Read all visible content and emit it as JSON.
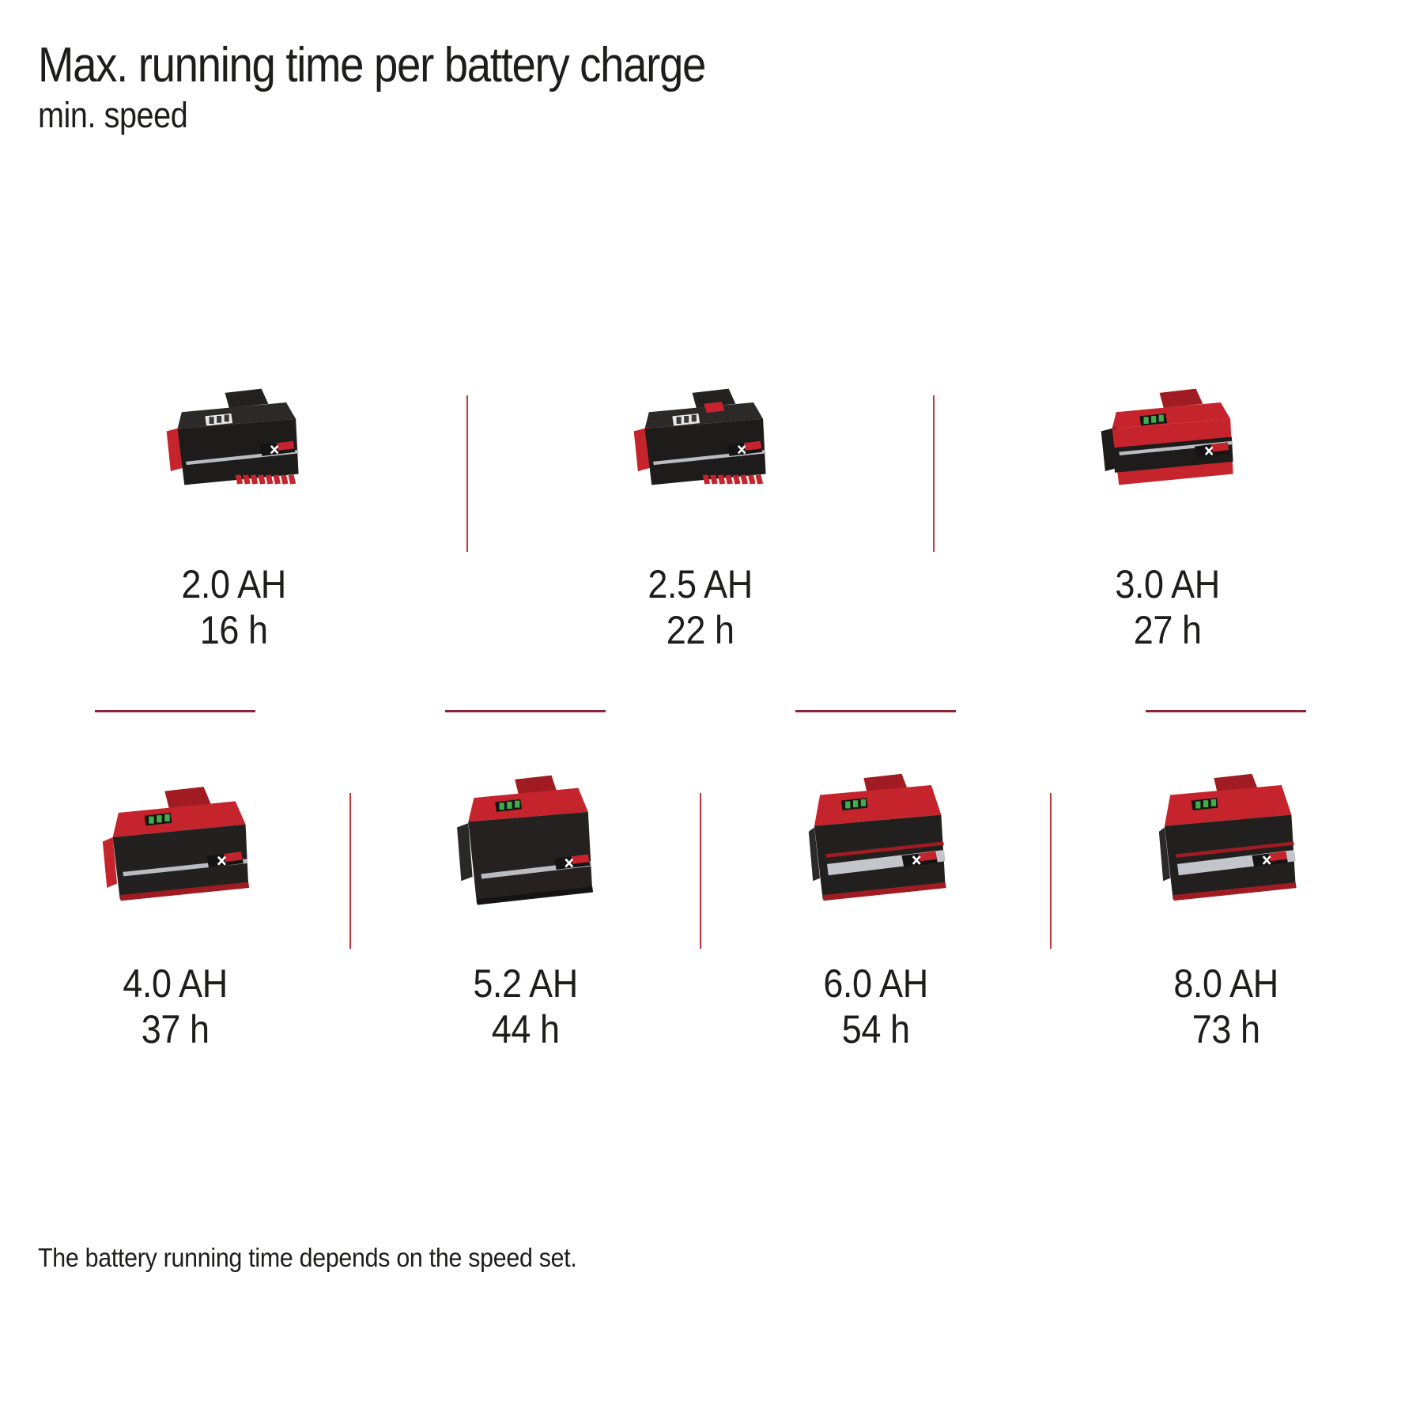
{
  "header": {
    "title": "Max. running time per battery charge",
    "subtitle": "min. speed"
  },
  "items": [
    {
      "capacity": "2.0 AH",
      "runtime": "16 h",
      "image": "battery-2-0ah-image",
      "variant": "compact-black"
    },
    {
      "capacity": "2.5 AH",
      "runtime": "22 h",
      "image": "battery-2-5ah-image",
      "variant": "compact-black-button"
    },
    {
      "capacity": "3.0 AH",
      "runtime": "27 h",
      "image": "battery-3-0ah-image",
      "variant": "compact-red"
    },
    {
      "capacity": "4.0 AH",
      "runtime": "37 h",
      "image": "battery-4-0ah-image",
      "variant": "mid-red"
    },
    {
      "capacity": "5.2 AH",
      "runtime": "44 h",
      "image": "battery-5-2ah-image",
      "variant": "plus-dark"
    },
    {
      "capacity": "6.0 AH",
      "runtime": "54 h",
      "image": "battery-6-0ah-image",
      "variant": "plus"
    },
    {
      "capacity": "8.0 AH",
      "runtime": "73 h",
      "image": "battery-8-0ah-image",
      "variant": "plus"
    }
  ],
  "footnote": "The battery running time depends on the speed set.",
  "colors": {
    "brand_red": "#c5242c",
    "dark_red": "#a11b22",
    "body_dark": "#1d1c1b",
    "divider_vertical": "#c4343c",
    "divider_horizontal": "#8d2335",
    "text": "#1d1d1b",
    "led_green": "#3fae4a",
    "stripe_silver": "#b9bcc0"
  },
  "chart_data": {
    "type": "table",
    "title": "Max. running time per battery charge",
    "subtitle": "min. speed",
    "categories": [
      "2.0 AH",
      "2.5 AH",
      "3.0 AH",
      "4.0 AH",
      "5.2 AH",
      "6.0 AH",
      "8.0 AH"
    ],
    "values": [
      16,
      22,
      27,
      37,
      44,
      54,
      73
    ],
    "unit": "h",
    "series_label": "Max. running time",
    "note": "The battery running time depends on the speed set.",
    "layout": "two rows of product tiles: 3 on top, 4 on bottom"
  }
}
